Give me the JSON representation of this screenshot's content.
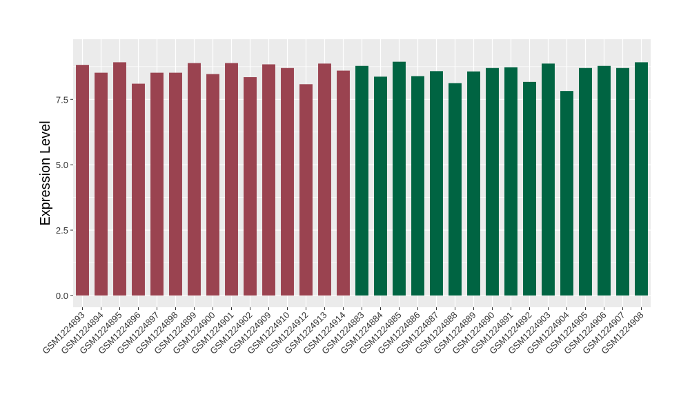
{
  "chart_data": {
    "type": "bar",
    "ylabel": "Expression Level",
    "ylim": [
      -0.45,
      9.8
    ],
    "yticks": [
      0.0,
      2.5,
      5.0,
      7.5
    ],
    "ytick_labels": [
      "0.0",
      "2.5",
      "5.0",
      "7.5"
    ],
    "grid": true,
    "legend": "none",
    "categories": [
      "GSM1224893",
      "GSM1224894",
      "GSM1224895",
      "GSM1224896",
      "GSM1224897",
      "GSM1224898",
      "GSM1224899",
      "GSM1224900",
      "GSM1224901",
      "GSM1224902",
      "GSM1224909",
      "GSM1224910",
      "GSM1224912",
      "GSM1224913",
      "GSM1224914",
      "GSM1224883",
      "GSM1224884",
      "GSM1224885",
      "GSM1224886",
      "GSM1224887",
      "GSM1224888",
      "GSM1224889",
      "GSM1224890",
      "GSM1224891",
      "GSM1224892",
      "GSM1224903",
      "GSM1224904",
      "GSM1224905",
      "GSM1224906",
      "GSM1224907",
      "GSM1224908"
    ],
    "values": [
      8.82,
      8.52,
      8.92,
      8.1,
      8.52,
      8.52,
      8.89,
      8.47,
      8.89,
      8.35,
      8.84,
      8.7,
      8.08,
      8.87,
      8.6,
      8.78,
      8.37,
      8.94,
      8.39,
      8.58,
      8.12,
      8.57,
      8.7,
      8.73,
      8.17,
      8.87,
      7.82,
      8.7,
      8.78,
      8.7,
      8.92
    ],
    "groups": [
      0,
      0,
      0,
      0,
      0,
      0,
      0,
      0,
      0,
      0,
      0,
      0,
      0,
      0,
      0,
      1,
      1,
      1,
      1,
      1,
      1,
      1,
      1,
      1,
      1,
      1,
      1,
      1,
      1,
      1,
      1
    ],
    "group_colors": [
      "#9a4350",
      "#006442"
    ],
    "panel_color": "#ebebeb",
    "grid_color": "#ffffff"
  }
}
